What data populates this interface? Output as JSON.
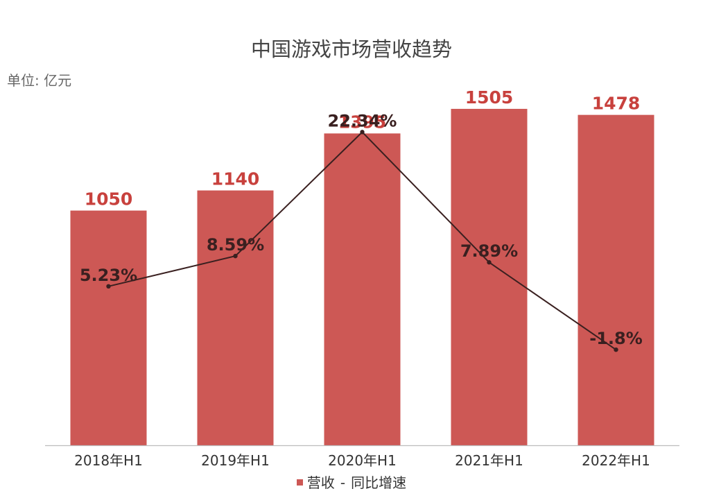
{
  "title": "中国游戏市场营收趋势",
  "unit": "单位: 亿元",
  "legend": {
    "bar_label": "营收",
    "separator": "-",
    "line_label": "同比增速"
  },
  "colors": {
    "bar": "#cd5855",
    "bar_label": "#c8413d",
    "line": "#3a2020",
    "axis": "#bdbdbd",
    "text": "#333333"
  },
  "chart_data": {
    "type": "bar",
    "title": "中国游戏市场营收趋势",
    "ylabel": "单位: 亿元",
    "categories": [
      "2018年H1",
      "2019年H1",
      "2020年H1",
      "2021年H1",
      "2022年H1"
    ],
    "series": [
      {
        "name": "营收",
        "type": "bar",
        "values": [
          1050,
          1140,
          1395,
          1505,
          1478
        ],
        "labels": [
          "1050",
          "1140",
          "1395",
          "1505",
          "1478"
        ]
      },
      {
        "name": "同比增速",
        "type": "line",
        "values": [
          5.23,
          8.59,
          22.34,
          7.89,
          -1.8
        ],
        "labels": [
          "5.23%",
          "8.59%",
          "22.34%",
          "7.89%",
          "-1.8%"
        ]
      }
    ],
    "legend_position": "bottom",
    "grid": false
  }
}
